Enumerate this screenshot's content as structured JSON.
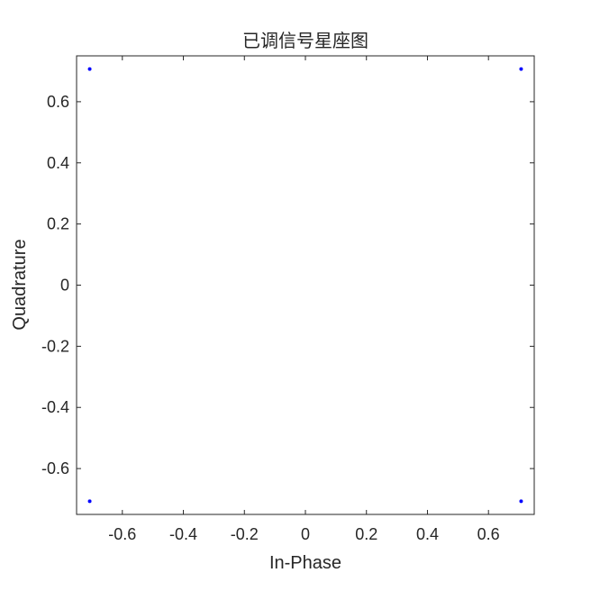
{
  "chart_data": {
    "type": "scatter",
    "title": "已调信号星座图",
    "xlabel": "In-Phase",
    "ylabel": "Quadrature",
    "xlim": [
      -0.75,
      0.75
    ],
    "ylim": [
      -0.75,
      0.75
    ],
    "xticks": [
      -0.6,
      -0.4,
      -0.2,
      0,
      0.2,
      0.4,
      0.6
    ],
    "yticks": [
      -0.6,
      -0.4,
      -0.2,
      0,
      0.2,
      0.4,
      0.6
    ],
    "xtick_labels": [
      "-0.6",
      "-0.4",
      "-0.2",
      "0",
      "0.2",
      "0.4",
      "0.6"
    ],
    "ytick_labels": [
      "-0.6",
      "-0.4",
      "-0.2",
      "0",
      "0.2",
      "0.4",
      "0.6"
    ],
    "grid": false,
    "point_color": "#0000ff",
    "points": [
      {
        "x": -0.707,
        "y": 0.707
      },
      {
        "x": 0.707,
        "y": 0.707
      },
      {
        "x": -0.707,
        "y": -0.707
      },
      {
        "x": 0.707,
        "y": -0.707
      }
    ]
  }
}
